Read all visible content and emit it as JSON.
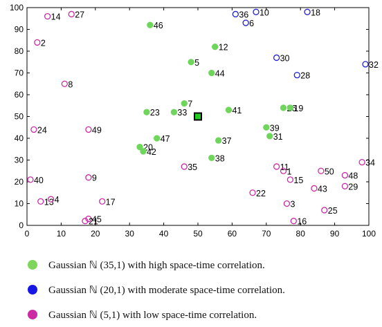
{
  "chart_data": {
    "type": "scatter",
    "title": "",
    "xlabel": "",
    "ylabel": "",
    "xlim": [
      0,
      100
    ],
    "ylim": [
      0,
      100
    ],
    "x_ticks": [
      0,
      10,
      20,
      30,
      40,
      50,
      60,
      70,
      80,
      90,
      100
    ],
    "y_ticks": [
      0,
      10,
      20,
      30,
      40,
      50,
      60,
      70,
      80,
      90,
      100
    ],
    "grid": false,
    "center_marker": {
      "x": 50,
      "y": 50,
      "color": "#22cc22"
    },
    "series": [
      {
        "key": "high",
        "color": "#6ed65a",
        "points": [
          {
            "id": "46",
            "x": 36,
            "y": 92
          },
          {
            "id": "12",
            "x": 55,
            "y": 82
          },
          {
            "id": "5",
            "x": 48,
            "y": 75
          },
          {
            "id": "44",
            "x": 54,
            "y": 70
          },
          {
            "id": "7",
            "x": 46,
            "y": 56
          },
          {
            "id": "23",
            "x": 35,
            "y": 52
          },
          {
            "id": "33",
            "x": 43,
            "y": 52
          },
          {
            "id": "41",
            "x": 59,
            "y": 53
          },
          {
            "id": "26",
            "x": 75,
            "y": 54
          },
          {
            "id": "19",
            "x": 77,
            "y": 54
          },
          {
            "id": "39",
            "x": 70,
            "y": 45
          },
          {
            "id": "31",
            "x": 71,
            "y": 41
          },
          {
            "id": "47",
            "x": 38,
            "y": 40
          },
          {
            "id": "37",
            "x": 56,
            "y": 39
          },
          {
            "id": "20",
            "x": 33,
            "y": 36
          },
          {
            "id": "42",
            "x": 34,
            "y": 34
          },
          {
            "id": "38",
            "x": 54,
            "y": 31
          }
        ]
      },
      {
        "key": "moderate",
        "color": "#1f1fd6",
        "points": [
          {
            "id": "36",
            "x": 61,
            "y": 97
          },
          {
            "id": "10",
            "x": 67,
            "y": 98
          },
          {
            "id": "18",
            "x": 82,
            "y": 98
          },
          {
            "id": "6",
            "x": 64,
            "y": 93
          },
          {
            "id": "30",
            "x": 73,
            "y": 77
          },
          {
            "id": "32",
            "x": 99,
            "y": 74
          },
          {
            "id": "28",
            "x": 79,
            "y": 69
          }
        ]
      },
      {
        "key": "low",
        "color": "#cc2aa4",
        "points": [
          {
            "id": "14",
            "x": 6,
            "y": 96
          },
          {
            "id": "27",
            "x": 13,
            "y": 97
          },
          {
            "id": "2",
            "x": 3,
            "y": 84
          },
          {
            "id": "8",
            "x": 11,
            "y": 65
          },
          {
            "id": "24",
            "x": 2,
            "y": 44
          },
          {
            "id": "49",
            "x": 18,
            "y": 44
          },
          {
            "id": "35",
            "x": 46,
            "y": 27
          },
          {
            "id": "11",
            "x": 73,
            "y": 27
          },
          {
            "id": "1",
            "x": 75,
            "y": 25
          },
          {
            "id": "50",
            "x": 86,
            "y": 25
          },
          {
            "id": "34",
            "x": 98,
            "y": 29
          },
          {
            "id": "48",
            "x": 93,
            "y": 23
          },
          {
            "id": "29",
            "x": 93,
            "y": 18
          },
          {
            "id": "15",
            "x": 77,
            "y": 21
          },
          {
            "id": "43",
            "x": 84,
            "y": 17
          },
          {
            "id": "22",
            "x": 66,
            "y": 15
          },
          {
            "id": "3",
            "x": 76,
            "y": 10
          },
          {
            "id": "25",
            "x": 87,
            "y": 7
          },
          {
            "id": "16",
            "x": 78,
            "y": 2
          },
          {
            "id": "40",
            "x": 1,
            "y": 21
          },
          {
            "id": "9",
            "x": 18,
            "y": 22
          },
          {
            "id": "13",
            "x": 4,
            "y": 11
          },
          {
            "id": "4",
            "x": 7,
            "y": 12
          },
          {
            "id": "17",
            "x": 22,
            "y": 11
          },
          {
            "id": "45",
            "x": 18,
            "y": 3
          },
          {
            "id": "21",
            "x": 17,
            "y": 2
          }
        ]
      }
    ]
  },
  "legend": [
    {
      "key": "high",
      "color": "#7dd65a",
      "label": "Gaussian ℕ (35,1)  with high space-time correlation."
    },
    {
      "key": "moderate",
      "color": "#1717e6",
      "label": "Gaussian ℕ (20,1)  with moderate space-time correlation."
    },
    {
      "key": "low",
      "color": "#cc2aa4",
      "label": "Gaussian ℕ (5,1)  with low space-time correlation."
    }
  ]
}
